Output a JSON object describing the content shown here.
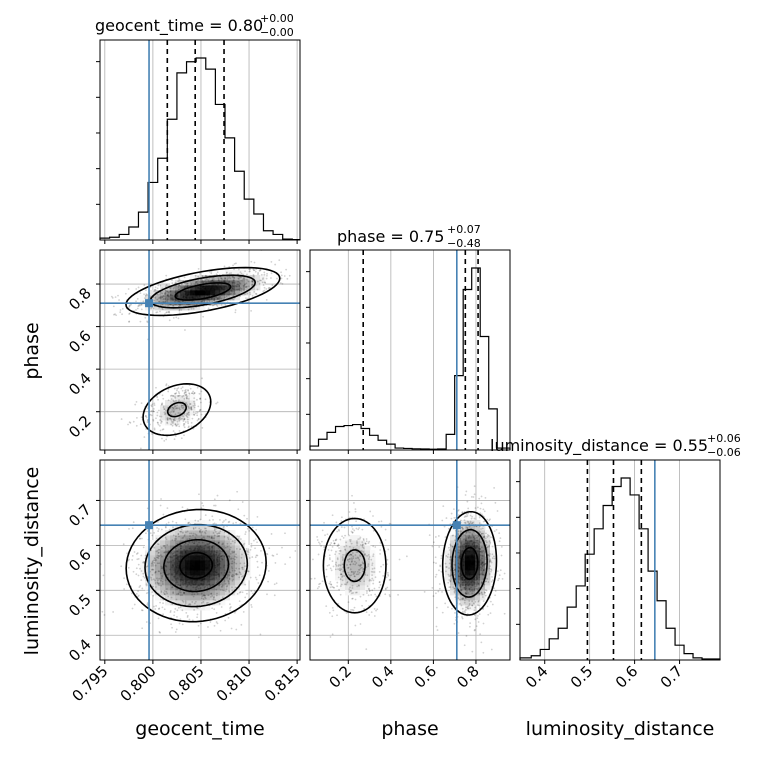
{
  "chart_data": {
    "type": "corner",
    "parameters": [
      "geocent_time",
      "phase",
      "luminosity_distance"
    ],
    "truth_values": {
      "geocent_time": 0.7996,
      "phase": 0.71,
      "luminosity_distance": 0.645
    },
    "truth_color": "#4682b4",
    "grid": true,
    "titles": {
      "geocent_time": {
        "label": "geocent_time = 0.80",
        "plus": "+0.00",
        "minus": "−0.00"
      },
      "phase": {
        "label": "phase = 0.75",
        "plus": "+0.07",
        "minus": "−0.48"
      },
      "luminosity_distance": {
        "label": "luminosity_distance = 0.55",
        "plus": "+0.06",
        "minus": "−0.06"
      }
    },
    "axes": {
      "geocent_time": {
        "range": [
          0.7945,
          0.8153
        ],
        "ticks": [
          "0.795",
          "0.800",
          "0.805",
          "0.810",
          "0.815"
        ],
        "tick_values": [
          0.795,
          0.8,
          0.805,
          0.81,
          0.815
        ]
      },
      "phase": {
        "range": [
          0.02,
          0.96
        ],
        "ticks": [
          "0.2",
          "0.4",
          "0.6",
          "0.8"
        ],
        "tick_values": [
          0.2,
          0.4,
          0.6,
          0.8
        ]
      },
      "luminosity_distance": {
        "range": [
          0.345,
          0.79
        ],
        "ticks": [
          "0.4",
          "0.5",
          "0.6",
          "0.7"
        ],
        "tick_values": [
          0.4,
          0.5,
          0.6,
          0.7
        ]
      }
    },
    "quantiles": {
      "geocent_time": [
        0.8015,
        0.8044,
        0.8074
      ],
      "phase": [
        0.27,
        0.75,
        0.81
      ],
      "luminosity_distance": [
        0.495,
        0.553,
        0.615
      ]
    },
    "histograms": {
      "geocent_time": {
        "edges": [
          0.7945,
          0.7955,
          0.7965,
          0.7975,
          0.7985,
          0.7995,
          0.8005,
          0.8015,
          0.8025,
          0.8035,
          0.8045,
          0.8055,
          0.8065,
          0.8075,
          0.8085,
          0.8095,
          0.8105,
          0.8115,
          0.8125,
          0.8135,
          0.8145,
          0.8153
        ],
        "counts": [
          0.01,
          0.015,
          0.03,
          0.07,
          0.15,
          0.31,
          0.44,
          0.65,
          0.9,
          0.96,
          0.98,
          0.92,
          0.73,
          0.55,
          0.37,
          0.22,
          0.14,
          0.05,
          0.03,
          0.005,
          0.002
        ]
      },
      "phase": {
        "edges": [
          0.02,
          0.06,
          0.1,
          0.14,
          0.18,
          0.22,
          0.26,
          0.3,
          0.34,
          0.38,
          0.42,
          0.46,
          0.5,
          0.54,
          0.58,
          0.62,
          0.66,
          0.7,
          0.74,
          0.78,
          0.82,
          0.86,
          0.9,
          0.96
        ],
        "counts": [
          0.02,
          0.055,
          0.09,
          0.12,
          0.125,
          0.13,
          0.11,
          0.075,
          0.05,
          0.03,
          0.01,
          0.008,
          0.006,
          0.005,
          0.004,
          0.005,
          0.08,
          0.38,
          0.82,
          0.93,
          0.58,
          0.21,
          0.01
        ]
      },
      "luminosity_distance": {
        "edges": [
          0.345,
          0.37,
          0.39,
          0.41,
          0.43,
          0.45,
          0.47,
          0.49,
          0.51,
          0.53,
          0.55,
          0.57,
          0.59,
          0.61,
          0.63,
          0.65,
          0.67,
          0.69,
          0.71,
          0.73,
          0.75,
          0.79
        ],
        "counts": [
          0.01,
          0.02,
          0.05,
          0.1,
          0.15,
          0.25,
          0.35,
          0.5,
          0.62,
          0.73,
          0.82,
          0.86,
          0.78,
          0.62,
          0.42,
          0.28,
          0.15,
          0.07,
          0.03,
          0.01,
          0.005
        ]
      }
    },
    "pairs": [
      {
        "x": "geocent_time",
        "y": "phase",
        "blobs": [
          {
            "cx": 0.8052,
            "cy": 0.765,
            "sx": 0.0032,
            "sy": 0.045,
            "rho": 0.55,
            "n": 900,
            "weight": 1.0
          },
          {
            "cx": 0.8025,
            "cy": 0.21,
            "sx": 0.0016,
            "sy": 0.055,
            "rho": 0.3,
            "n": 320,
            "weight": 0.28
          }
        ],
        "contours": [
          {
            "cx": 0.8052,
            "cy": 0.765,
            "sx": 0.0032,
            "sy": 0.045,
            "rho": 0.55,
            "levels": [
              0.9,
              1.7,
              2.5
            ]
          },
          {
            "cx": 0.8025,
            "cy": 0.21,
            "sx": 0.0016,
            "sy": 0.055,
            "rho": 0.3,
            "levels": [
              0.6,
              2.2
            ]
          }
        ]
      },
      {
        "x": "geocent_time",
        "y": "luminosity_distance",
        "blobs": [
          {
            "cx": 0.8045,
            "cy": 0.555,
            "sx": 0.0028,
            "sy": 0.048,
            "rho": 0.05,
            "n": 1300,
            "weight": 1.0
          }
        ],
        "contours": [
          {
            "cx": 0.8045,
            "cy": 0.555,
            "sx": 0.0028,
            "sy": 0.048,
            "rho": 0.05,
            "levels": [
              0.6,
              1.2,
              1.9,
              2.6
            ]
          }
        ]
      },
      {
        "x": "phase",
        "y": "luminosity_distance",
        "blobs": [
          {
            "cx": 0.77,
            "cy": 0.56,
            "sx": 0.055,
            "sy": 0.05,
            "rho": 0.05,
            "n": 900,
            "weight": 1.0
          },
          {
            "cx": 0.23,
            "cy": 0.555,
            "sx": 0.07,
            "sy": 0.05,
            "rho": 0.0,
            "n": 420,
            "weight": 0.3
          }
        ],
        "contours": [
          {
            "cx": 0.77,
            "cy": 0.56,
            "sx": 0.055,
            "sy": 0.05,
            "rho": 0.05,
            "levels": [
              0.7,
              1.5,
              2.3
            ]
          },
          {
            "cx": 0.23,
            "cy": 0.555,
            "sx": 0.07,
            "sy": 0.05,
            "rho": 0.0,
            "levels": [
              0.7,
              2.1
            ]
          }
        ]
      }
    ]
  }
}
